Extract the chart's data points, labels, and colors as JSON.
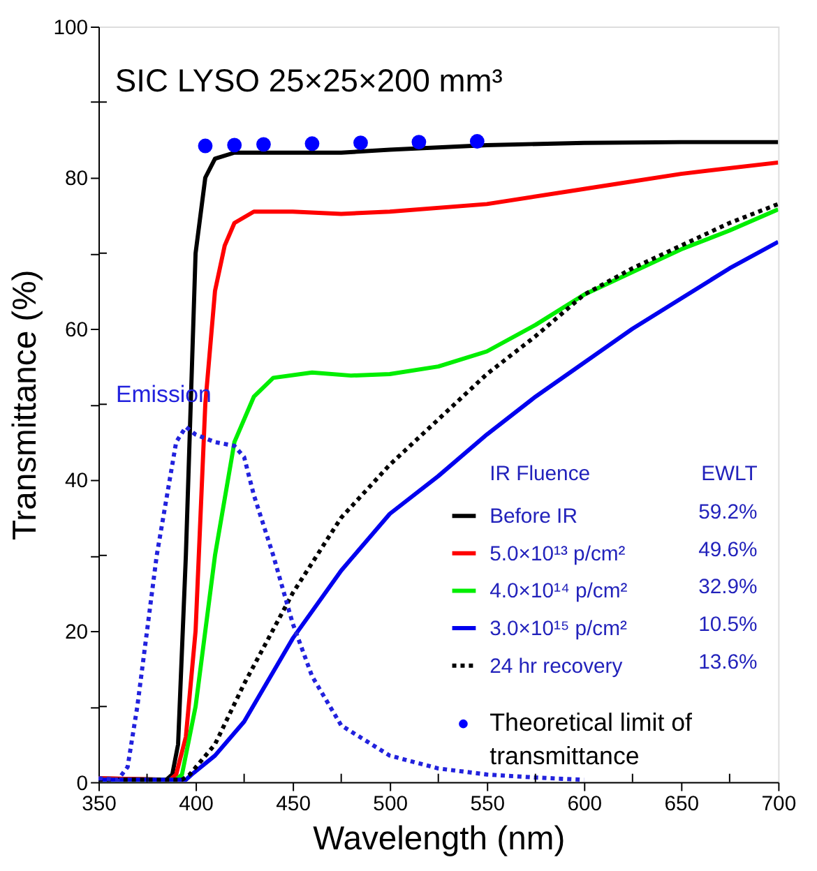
{
  "chart_data": {
    "type": "line",
    "title": "SIC  LYSO   25×25×200 mm³",
    "xlabel": "Wavelength (nm)",
    "ylabel": "Transmittance (%)",
    "legend_title": "IR Fluence",
    "annotations": [
      "EWLT",
      "59.2%",
      "49.6%",
      "32.9%",
      "10.5%",
      "13.6%"
    ],
    "xlim": [
      350,
      700
    ],
    "ylim": [
      0,
      100
    ],
    "xticks": [
      350,
      {
        "value": 375,
        "label": null
      },
      400,
      {
        "value": 425,
        "label": null
      },
      450,
      {
        "value": 475,
        "label": null
      },
      500,
      {
        "value": 525,
        "label": null
      },
      550,
      {
        "value": 575,
        "label": null
      },
      600,
      {
        "value": 625,
        "label": null
      },
      650,
      {
        "value": 675,
        "label": null
      },
      700
    ],
    "yticks": [
      0,
      {
        "value": 10,
        "label": null
      },
      20,
      {
        "value": 30,
        "label": null
      },
      40,
      {
        "value": 50,
        "label": null
      },
      60,
      {
        "value": 70,
        "label": null
      },
      80,
      {
        "value": 90,
        "label": null
      },
      100
    ],
    "grid": false,
    "legend": "bottom right",
    "series": [
      {
        "name": "Before IR",
        "color": "#000000",
        "line_style": "solid",
        "x": [
          350,
          385,
          388,
          391,
          395,
          400,
          405,
          410,
          420,
          450,
          475,
          500,
          550,
          600,
          650,
          700
        ],
        "values": [
          0.5,
          0.3,
          1,
          5,
          30,
          70,
          80,
          82.5,
          83.3,
          83.3,
          83.3,
          83.7,
          84.3,
          84.6,
          84.7,
          84.7
        ]
      },
      {
        "name": "5.0×10¹³ p/cm²",
        "color": "#ff0000",
        "line_style": "solid",
        "x": [
          350,
          387,
          390,
          395,
          400,
          405,
          410,
          415,
          420,
          430,
          450,
          475,
          500,
          550,
          600,
          650,
          700
        ],
        "values": [
          0.5,
          0.3,
          1,
          6,
          20,
          50,
          65,
          71,
          74,
          75.5,
          75.5,
          75.2,
          75.5,
          76.5,
          78.5,
          80.5,
          82
        ]
      },
      {
        "name": "4.0×10¹⁴ p/cm²",
        "color": "#00ee00",
        "line_style": "solid",
        "x": [
          350,
          390,
          393,
          400,
          410,
          420,
          430,
          440,
          460,
          480,
          500,
          525,
          550,
          575,
          600,
          625,
          650,
          675,
          700
        ],
        "values": [
          0.3,
          0.3,
          1,
          10,
          30,
          45,
          51,
          53.5,
          54.2,
          53.8,
          54,
          55,
          57,
          60.5,
          64.5,
          67.5,
          70.5,
          73,
          75.8
        ]
      },
      {
        "name": "3.0×10¹⁵ p/cm²",
        "color": "#0000ee",
        "line_style": "solid",
        "x": [
          350,
          395,
          398,
          410,
          425,
          450,
          475,
          500,
          525,
          550,
          575,
          600,
          625,
          650,
          675,
          700
        ],
        "values": [
          0.3,
          0.3,
          1,
          3.5,
          8,
          19,
          28,
          35.5,
          40.5,
          46,
          51,
          55.5,
          60,
          64,
          68,
          71.5
        ]
      },
      {
        "name": "24 hr recovery",
        "color": "#000000",
        "line_style": "dotted",
        "x": [
          350,
          393,
          397,
          410,
          425,
          450,
          475,
          500,
          525,
          550,
          575,
          600,
          625,
          650,
          675,
          700
        ],
        "values": [
          0.3,
          0.3,
          1,
          5,
          13,
          25,
          35,
          42,
          48,
          54,
          59,
          64.5,
          68,
          71,
          74,
          76.5
        ]
      },
      {
        "name": "Emission",
        "color": "#2222dd",
        "line_style": "dotted",
        "x": [
          350,
          360,
          365,
          370,
          380,
          390,
          395,
          400,
          410,
          420,
          425,
          430,
          440,
          450,
          460,
          475,
          500,
          525,
          550,
          575,
          600
        ],
        "values": [
          0.5,
          0.3,
          2,
          10,
          30,
          45,
          47,
          46,
          45,
          44.5,
          43,
          38,
          30,
          21,
          14,
          7.5,
          3.5,
          1.8,
          1,
          0.6,
          0.3
        ]
      },
      {
        "name": "Theoretical limit of transmittance",
        "type": "scatter",
        "marker": "circle",
        "color": "#0000ff",
        "x": [
          405,
          420,
          435,
          460,
          485,
          515,
          545
        ],
        "values": [
          84.2,
          84.3,
          84.4,
          84.5,
          84.6,
          84.7,
          84.8
        ]
      }
    ]
  }
}
